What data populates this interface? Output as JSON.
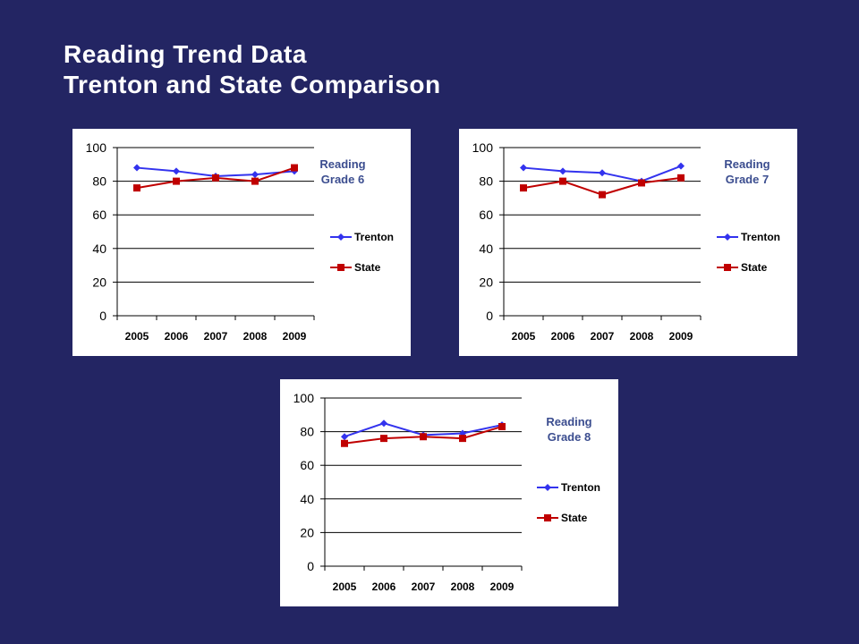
{
  "page": {
    "title_line1": "Reading Trend Data",
    "title_line2": "Trenton and State Comparison",
    "background": "#232563"
  },
  "colors": {
    "trenton": "#3333ee",
    "state": "#c00000",
    "chart_title": "#3b4d8f"
  },
  "chart_data": [
    {
      "type": "line",
      "title": "Reading Grade 6",
      "title_lines": [
        "Reading",
        "Grade 6"
      ],
      "x": [
        "2005",
        "2006",
        "2007",
        "2008",
        "2009"
      ],
      "yticks": [
        "0",
        "20",
        "40",
        "60",
        "80",
        "100"
      ],
      "ylim": [
        0,
        100
      ],
      "grid": "horizontal",
      "legend": "right",
      "series": [
        {
          "name": "Trenton",
          "marker": "diamond",
          "values": [
            88,
            86,
            83,
            84,
            86
          ]
        },
        {
          "name": "State",
          "marker": "square",
          "values": [
            76,
            80,
            82,
            80,
            88
          ]
        }
      ]
    },
    {
      "type": "line",
      "title": "Reading Grade 7",
      "title_lines": [
        "Reading",
        "Grade 7"
      ],
      "x": [
        "2005",
        "2006",
        "2007",
        "2008",
        "2009"
      ],
      "yticks": [
        "0",
        "20",
        "40",
        "60",
        "80",
        "100"
      ],
      "ylim": [
        0,
        100
      ],
      "grid": "horizontal",
      "legend": "right",
      "series": [
        {
          "name": "Trenton",
          "marker": "diamond",
          "values": [
            88,
            86,
            85,
            80,
            89
          ]
        },
        {
          "name": "State",
          "marker": "square",
          "values": [
            76,
            80,
            72,
            79,
            82
          ]
        }
      ]
    },
    {
      "type": "line",
      "title": "Reading Grade 8",
      "title_lines": [
        "Reading",
        "Grade 8"
      ],
      "x": [
        "2005",
        "2006",
        "2007",
        "2008",
        "2009"
      ],
      "yticks": [
        "0",
        "20",
        "40",
        "60",
        "80",
        "100"
      ],
      "ylim": [
        0,
        100
      ],
      "grid": "horizontal",
      "legend": "right",
      "series": [
        {
          "name": "Trenton",
          "marker": "diamond",
          "values": [
            77,
            85,
            78,
            79,
            84
          ]
        },
        {
          "name": "State",
          "marker": "square",
          "values": [
            73,
            76,
            77,
            76,
            83
          ]
        }
      ]
    }
  ]
}
